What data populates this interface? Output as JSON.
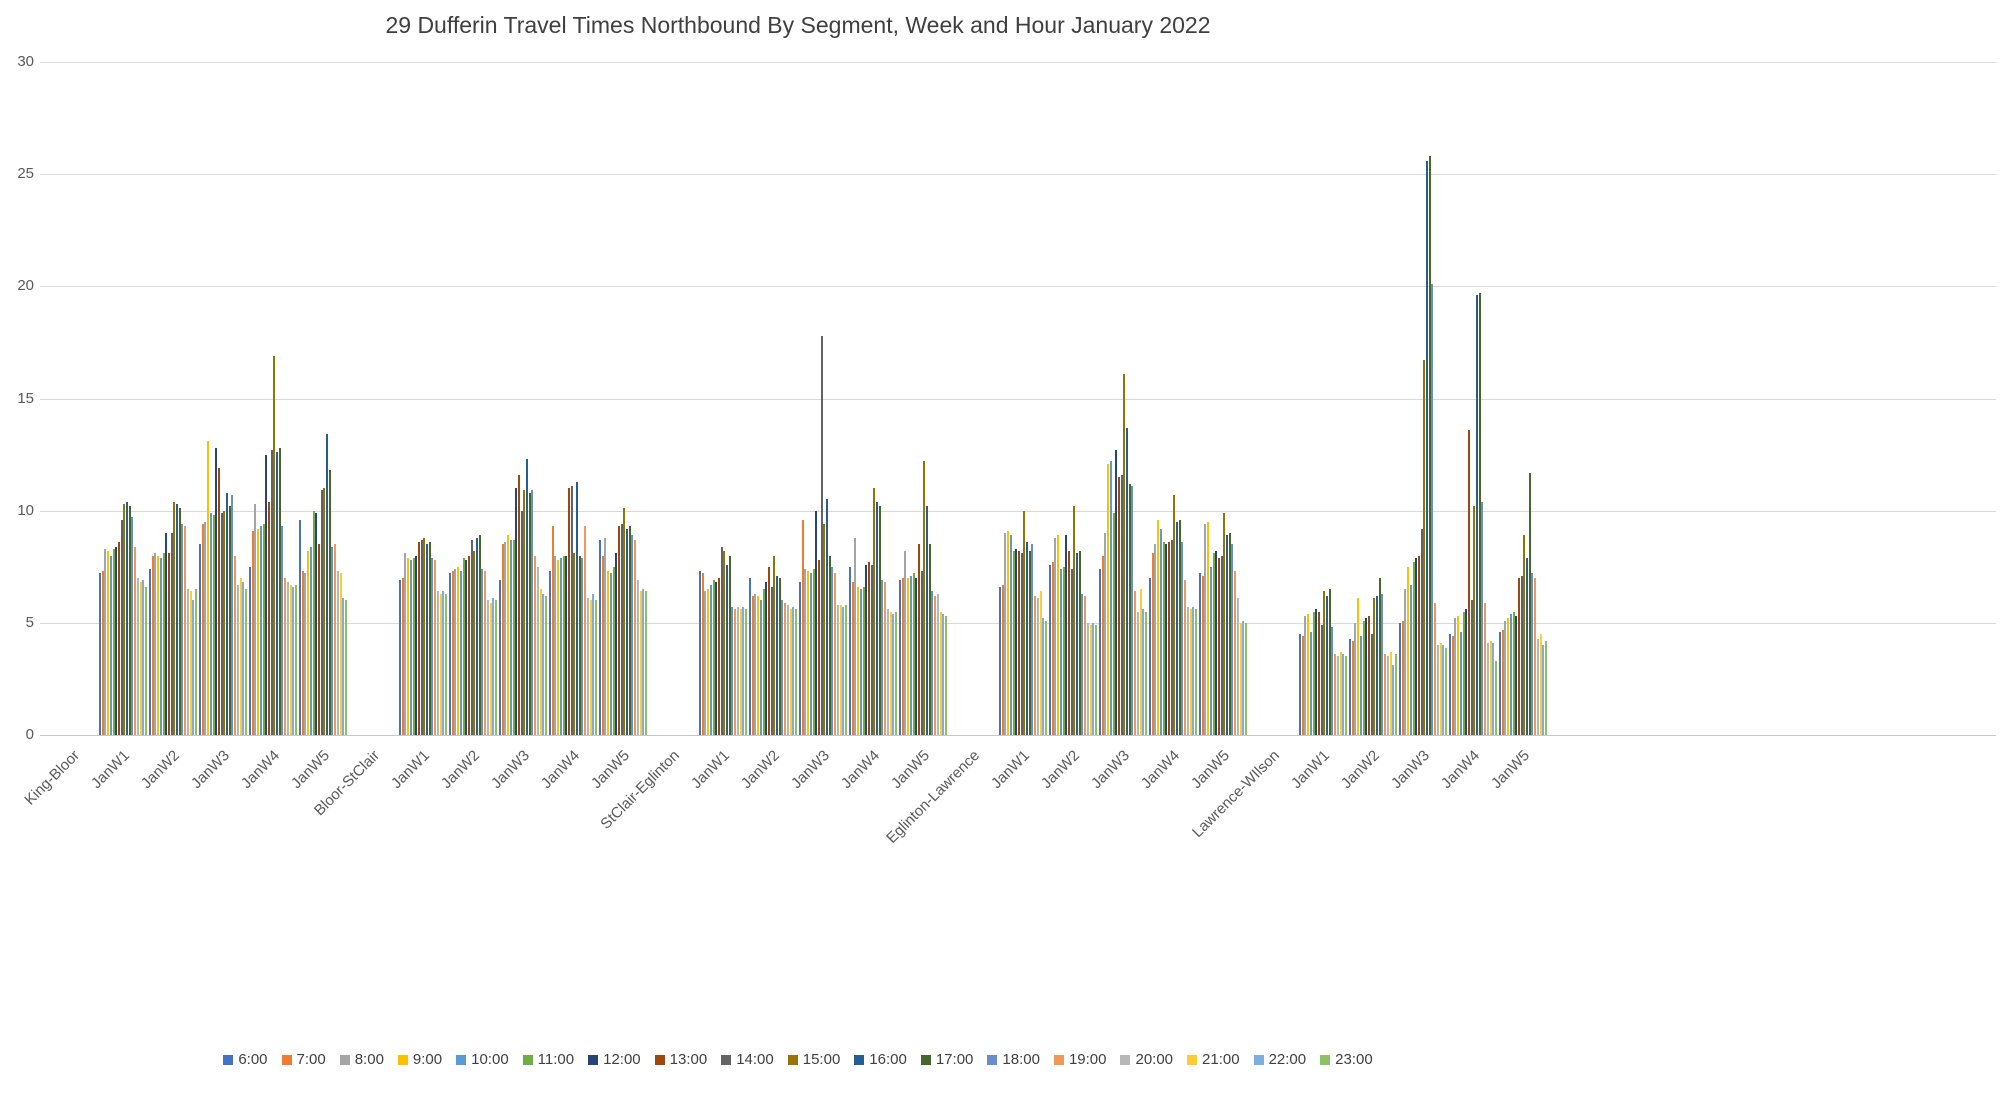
{
  "chart_data": {
    "type": "bar",
    "title": "29 Dufferin Travel Times Northbound By Segment, Week and Hour January 2022",
    "xlabel": "",
    "ylabel": "",
    "ylim": [
      0,
      30
    ],
    "yticks": [
      0,
      5,
      10,
      15,
      20,
      25,
      30
    ],
    "grid": true,
    "legend_position": "bottom",
    "series_names": [
      "6:00",
      "7:00",
      "8:00",
      "9:00",
      "10:00",
      "11:00",
      "12:00",
      "13:00",
      "14:00",
      "15:00",
      "16:00",
      "17:00",
      "18:00",
      "19:00",
      "20:00",
      "21:00",
      "22:00",
      "23:00"
    ],
    "series_colors": [
      "#4472C4",
      "#ED7D31",
      "#A5A5A5",
      "#FFC000",
      "#5B9BD5",
      "#70AD47",
      "#264478",
      "#9E480E",
      "#636363",
      "#997300",
      "#255E91",
      "#43682B",
      "#698ED0",
      "#F1975A",
      "#B7B7B7",
      "#FFCD33",
      "#7CAFDD",
      "#8CC168"
    ],
    "segments": [
      {
        "name": "King-Bloor",
        "weeks": [
          {
            "label": "JanW1",
            "values": [
              7.2,
              7.3,
              8.3,
              8.2,
              8.0,
              8.3,
              8.4,
              8.6,
              9.6,
              10.3,
              10.4,
              10.2,
              9.7,
              8.4,
              7.0,
              6.8,
              6.9,
              6.6
            ]
          },
          {
            "label": "JanW2",
            "values": [
              7.4,
              8.0,
              8.1,
              8.0,
              7.9,
              8.1,
              9.0,
              8.1,
              9.0,
              10.4,
              10.3,
              10.1,
              9.4,
              9.3,
              6.5,
              6.4,
              6.0,
              6.5
            ]
          },
          {
            "label": "JanW3",
            "values": [
              8.5,
              9.4,
              9.5,
              13.1,
              9.9,
              9.8,
              12.8,
              11.9,
              9.9,
              10.0,
              10.8,
              10.2,
              10.7,
              8.0,
              6.7,
              7.0,
              6.8,
              6.5
            ]
          },
          {
            "label": "JanW4",
            "values": [
              7.5,
              9.1,
              10.3,
              9.2,
              9.3,
              9.4,
              12.5,
              10.4,
              12.7,
              16.9,
              12.6,
              12.8,
              9.3,
              7.0,
              6.8,
              6.7,
              6.6,
              6.7
            ]
          },
          {
            "label": "JanW5",
            "values": [
              9.6,
              7.3,
              7.2,
              8.2,
              8.4,
              10.0,
              9.9,
              8.5,
              10.9,
              11.0,
              13.4,
              11.8,
              8.4,
              8.5,
              7.3,
              7.2,
              6.1,
              6.0
            ]
          }
        ]
      },
      {
        "name": "Bloor-StClair",
        "weeks": [
          {
            "label": "JanW1",
            "values": [
              6.9,
              7.0,
              8.1,
              7.9,
              7.8,
              7.9,
              8.0,
              8.6,
              8.7,
              8.8,
              8.5,
              8.6,
              7.9,
              7.8,
              6.4,
              6.3,
              6.4,
              6.3
            ]
          },
          {
            "label": "JanW2",
            "values": [
              7.2,
              7.3,
              7.4,
              7.5,
              7.3,
              7.9,
              7.8,
              8.0,
              8.7,
              8.2,
              8.8,
              8.9,
              7.4,
              7.3,
              6.0,
              5.9,
              6.1,
              6.0
            ]
          },
          {
            "label": "JanW3",
            "values": [
              6.9,
              8.5,
              8.6,
              8.9,
              8.7,
              8.7,
              11.0,
              11.6,
              10.0,
              10.9,
              12.3,
              10.8,
              10.9,
              8.0,
              7.5,
              6.5,
              6.3,
              6.2
            ]
          },
          {
            "label": "JanW4",
            "values": [
              7.3,
              9.3,
              8.0,
              7.8,
              7.9,
              8.0,
              8.0,
              11.0,
              11.1,
              8.1,
              11.3,
              8.0,
              7.9,
              9.3,
              6.1,
              6.0,
              6.3,
              6.0
            ]
          },
          {
            "label": "JanW5",
            "values": [
              8.7,
              8.0,
              8.8,
              7.3,
              7.2,
              7.5,
              8.1,
              9.3,
              9.4,
              10.1,
              9.2,
              9.3,
              8.9,
              8.7,
              6.9,
              6.4,
              6.5,
              6.4
            ]
          }
        ]
      },
      {
        "name": "StClair-Eglinton",
        "weeks": [
          {
            "label": "JanW1",
            "values": [
              7.3,
              7.2,
              6.4,
              6.5,
              6.7,
              6.9,
              6.8,
              7.0,
              8.4,
              8.2,
              7.6,
              8.0,
              5.7,
              5.6,
              5.7,
              5.6,
              5.7,
              5.6
            ]
          },
          {
            "label": "JanW2",
            "values": [
              7.0,
              6.2,
              6.3,
              6.2,
              6.0,
              6.5,
              6.8,
              7.5,
              6.6,
              8.0,
              7.1,
              7.0,
              6.0,
              5.9,
              5.8,
              5.6,
              5.7,
              5.6
            ]
          },
          {
            "label": "JanW3",
            "values": [
              6.8,
              9.6,
              7.4,
              7.3,
              7.2,
              7.4,
              10.0,
              7.8,
              17.8,
              9.4,
              10.5,
              8.0,
              7.5,
              7.2,
              5.8,
              5.8,
              5.7,
              5.8
            ]
          },
          {
            "label": "JanW4",
            "values": [
              7.5,
              6.8,
              8.8,
              6.6,
              6.5,
              6.6,
              7.6,
              7.7,
              7.6,
              11.0,
              10.4,
              10.2,
              6.9,
              6.8,
              5.6,
              5.5,
              5.4,
              5.5
            ]
          },
          {
            "label": "JanW5",
            "values": [
              6.9,
              7.0,
              8.2,
              7.0,
              7.1,
              7.2,
              7.0,
              8.5,
              7.3,
              12.2,
              10.2,
              8.5,
              6.4,
              6.2,
              6.3,
              5.5,
              5.4,
              5.3
            ]
          }
        ]
      },
      {
        "name": "Eglinton-Lawrence",
        "weeks": [
          {
            "label": "JanW1",
            "values": [
              6.6,
              6.7,
              9.0,
              9.1,
              8.9,
              8.2,
              8.3,
              8.2,
              8.1,
              10.0,
              8.6,
              8.2,
              8.5,
              6.2,
              6.1,
              6.4,
              5.2,
              5.1
            ]
          },
          {
            "label": "JanW2",
            "values": [
              7.6,
              7.7,
              8.8,
              8.9,
              7.4,
              7.5,
              8.9,
              8.2,
              7.4,
              10.2,
              8.1,
              8.2,
              6.3,
              6.2,
              5.0,
              4.9,
              5.0,
              4.9
            ]
          },
          {
            "label": "JanW3",
            "values": [
              7.4,
              8.0,
              9.0,
              12.1,
              12.2,
              9.9,
              12.7,
              11.5,
              11.6,
              16.1,
              13.7,
              11.2,
              11.1,
              6.4,
              5.5,
              6.5,
              5.6,
              5.5
            ]
          },
          {
            "label": "JanW4",
            "values": [
              7.0,
              8.1,
              8.5,
              9.6,
              9.2,
              8.6,
              8.5,
              8.6,
              8.7,
              10.7,
              9.5,
              9.6,
              8.6,
              6.9,
              5.7,
              5.6,
              5.7,
              5.6
            ]
          },
          {
            "label": "JanW5",
            "values": [
              7.2,
              7.1,
              9.4,
              9.5,
              7.5,
              8.1,
              8.2,
              7.9,
              8.0,
              9.9,
              8.9,
              9.0,
              8.5,
              7.3,
              6.1,
              5.0,
              5.1,
              5.0
            ]
          }
        ]
      },
      {
        "name": "Lawrence-WIlson",
        "weeks": [
          {
            "label": "JanW1",
            "values": [
              4.5,
              4.4,
              5.3,
              5.4,
              4.6,
              5.5,
              5.6,
              5.5,
              4.9,
              6.4,
              6.2,
              6.5,
              4.8,
              3.6,
              3.5,
              3.7,
              3.6,
              3.5
            ]
          },
          {
            "label": "JanW2",
            "values": [
              4.3,
              4.2,
              5.0,
              6.1,
              4.4,
              5.1,
              5.2,
              5.3,
              4.5,
              6.1,
              6.2,
              7.0,
              6.3,
              3.6,
              3.5,
              3.7,
              3.1,
              3.6
            ]
          },
          {
            "label": "JanW3",
            "values": [
              5.0,
              5.1,
              6.5,
              7.5,
              6.7,
              7.7,
              7.9,
              8.0,
              9.2,
              16.7,
              25.6,
              25.8,
              20.1,
              5.9,
              4.0,
              4.1,
              4.0,
              3.9
            ]
          },
          {
            "label": "JanW4",
            "values": [
              4.5,
              4.4,
              5.2,
              5.3,
              4.6,
              5.5,
              5.6,
              13.6,
              6.0,
              10.2,
              19.6,
              19.7,
              10.4,
              5.9,
              4.1,
              4.2,
              4.1,
              3.3
            ]
          },
          {
            "label": "JanW5",
            "values": [
              4.6,
              4.7,
              5.1,
              5.2,
              5.4,
              5.5,
              5.3,
              7.0,
              7.1,
              8.9,
              7.9,
              11.7,
              7.2,
              7.0,
              4.3,
              4.5,
              4.0,
              4.2
            ]
          }
        ]
      }
    ]
  }
}
